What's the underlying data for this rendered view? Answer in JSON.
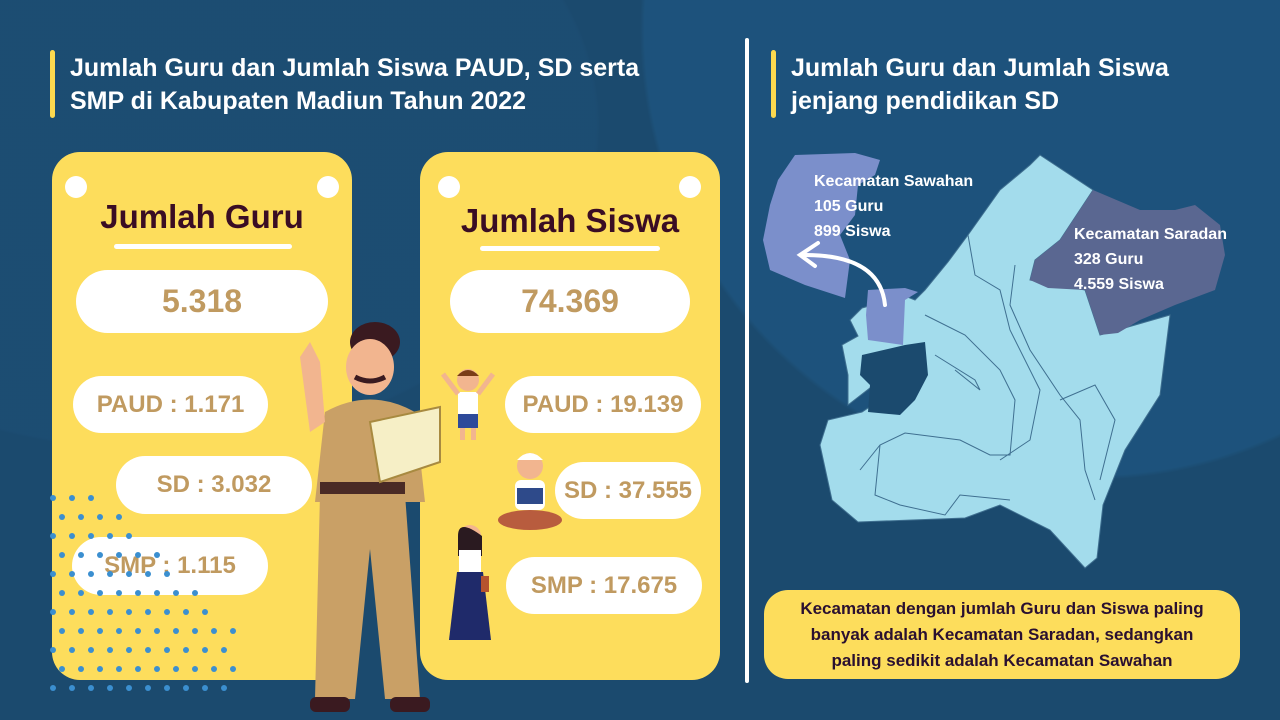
{
  "left": {
    "title_line1": "Jumlah Guru dan Jumlah Siswa PAUD, SD serta",
    "title_line2": "SMP di Kabupaten Madiun Tahun 2022",
    "guru": {
      "heading": "Jumlah Guru",
      "total": "5.318",
      "paud": "PAUD : 1.171",
      "sd": "SD : 3.032",
      "smp": "SMP : 1.115"
    },
    "siswa": {
      "heading": "Jumlah Siswa",
      "total": "74.369",
      "paud": "PAUD : 19.139",
      "sd": "SD : 37.555",
      "smp": "SMP : 17.675"
    }
  },
  "right": {
    "title_line1": "Jumlah Guru dan Jumlah Siswa",
    "title_line2": "jenjang pendidikan SD",
    "sawahan": {
      "name": "Kecamatan Sawahan",
      "guru": "105 Guru",
      "siswa": "899 Siswa"
    },
    "saradan": {
      "name": "Kecamatan Saradan",
      "guru": "328 Guru",
      "siswa": "4.559 Siswa"
    },
    "summary_line1": "Kecamatan dengan jumlah Guru dan Siswa paling",
    "summary_line2": "banyak adalah Kecamatan Saradan, sedangkan",
    "summary_line3": "paling sedikit adalah Kecamatan Sawahan"
  },
  "colors": {
    "background": "#1b4a6e",
    "card": "#fddd5c",
    "value_text": "#c09a60",
    "map_region": "#a3dcec",
    "sawahan": "#7b8fcb",
    "saradan": "#5a6791"
  }
}
